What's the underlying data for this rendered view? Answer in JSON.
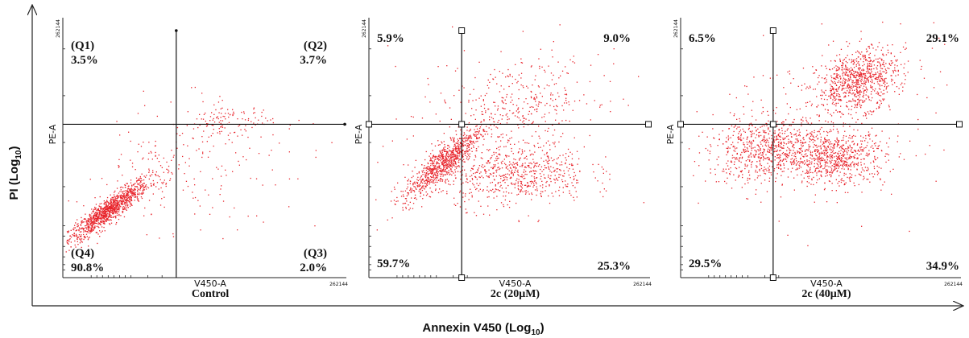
{
  "y_axis_title": "PI (Log",
  "y_axis_sub": "10",
  "x_axis_title": "Annexin V450 (Log",
  "x_axis_sub": "10",
  "chart_data": [
    {
      "type": "scatter",
      "caption": "Control",
      "xlabel": "V450-A",
      "ylabel": "PE-A",
      "xmax_label": "262144",
      "ymax_label": "262144",
      "point_color": "#e8242b",
      "quadrants": {
        "upper_left": {
          "label": "(Q1)",
          "value": "3.5%"
        },
        "upper_right": {
          "label": "(Q2)",
          "value": "3.7%"
        },
        "lower_right": {
          "label": "(Q3)",
          "value": "2.0%"
        },
        "lower_left": {
          "label": "(Q4)",
          "value": "90.8%"
        }
      },
      "gate": {
        "x": 0.4,
        "y": 0.59
      },
      "clusters": [
        {
          "cx": 0.16,
          "cy": 0.26,
          "sx": 0.07,
          "sy": 0.06,
          "n": 1100,
          "rho": 0.92
        },
        {
          "cx": 0.58,
          "cy": 0.6,
          "sx": 0.08,
          "sy": 0.035,
          "n": 120,
          "rho": 0.0
        },
        {
          "cx": 0.34,
          "cy": 0.4,
          "sx": 0.13,
          "sy": 0.11,
          "n": 150,
          "rho": 0.35
        },
        {
          "cx": 0.55,
          "cy": 0.42,
          "sx": 0.18,
          "sy": 0.12,
          "n": 70,
          "rho": 0.0
        }
      ]
    },
    {
      "type": "scatter",
      "caption": "2c (20μM)",
      "xlabel": "V450-A",
      "ylabel": "PE-A",
      "xmax_label": "262144",
      "ymax_label": "262144",
      "point_color": "#e8242b",
      "quadrants": {
        "upper_left": {
          "label": "",
          "value": "5.9%"
        },
        "upper_right": {
          "label": "",
          "value": "9.0%"
        },
        "lower_right": {
          "label": "",
          "value": "25.3%"
        },
        "lower_left": {
          "label": "",
          "value": "59.7%"
        }
      },
      "gate": {
        "x": 0.33,
        "y": 0.59
      },
      "clusters": [
        {
          "cx": 0.26,
          "cy": 0.44,
          "sx": 0.07,
          "sy": 0.07,
          "n": 850,
          "rho": 0.88
        },
        {
          "cx": 0.52,
          "cy": 0.4,
          "sx": 0.13,
          "sy": 0.06,
          "n": 650,
          "rho": 0.1
        },
        {
          "cx": 0.54,
          "cy": 0.68,
          "sx": 0.14,
          "sy": 0.08,
          "n": 300,
          "rho": 0.2
        },
        {
          "cx": 0.45,
          "cy": 0.55,
          "sx": 0.22,
          "sy": 0.18,
          "n": 120,
          "rho": 0.0
        }
      ]
    },
    {
      "type": "scatter",
      "caption": "2c (40μM)",
      "xlabel": "V450-A",
      "ylabel": "PE-A",
      "xmax_label": "262144",
      "ymax_label": "262144",
      "point_color": "#e8242b",
      "quadrants": {
        "upper_left": {
          "label": "",
          "value": "6.5%"
        },
        "upper_right": {
          "label": "",
          "value": "29.1%"
        },
        "lower_right": {
          "label": "",
          "value": "34.9%"
        },
        "lower_left": {
          "label": "",
          "value": "29.5%"
        }
      },
      "gate": {
        "x": 0.33,
        "y": 0.59
      },
      "clusters": [
        {
          "cx": 0.63,
          "cy": 0.76,
          "sx": 0.07,
          "sy": 0.06,
          "n": 800,
          "rho": 0.3
        },
        {
          "cx": 0.55,
          "cy": 0.46,
          "sx": 0.09,
          "sy": 0.05,
          "n": 700,
          "rho": 0.0
        },
        {
          "cx": 0.3,
          "cy": 0.5,
          "sx": 0.1,
          "sy": 0.06,
          "n": 650,
          "rho": 0.2
        },
        {
          "cx": 0.52,
          "cy": 0.62,
          "sx": 0.2,
          "sy": 0.18,
          "n": 250,
          "rho": 0.2
        }
      ]
    }
  ]
}
